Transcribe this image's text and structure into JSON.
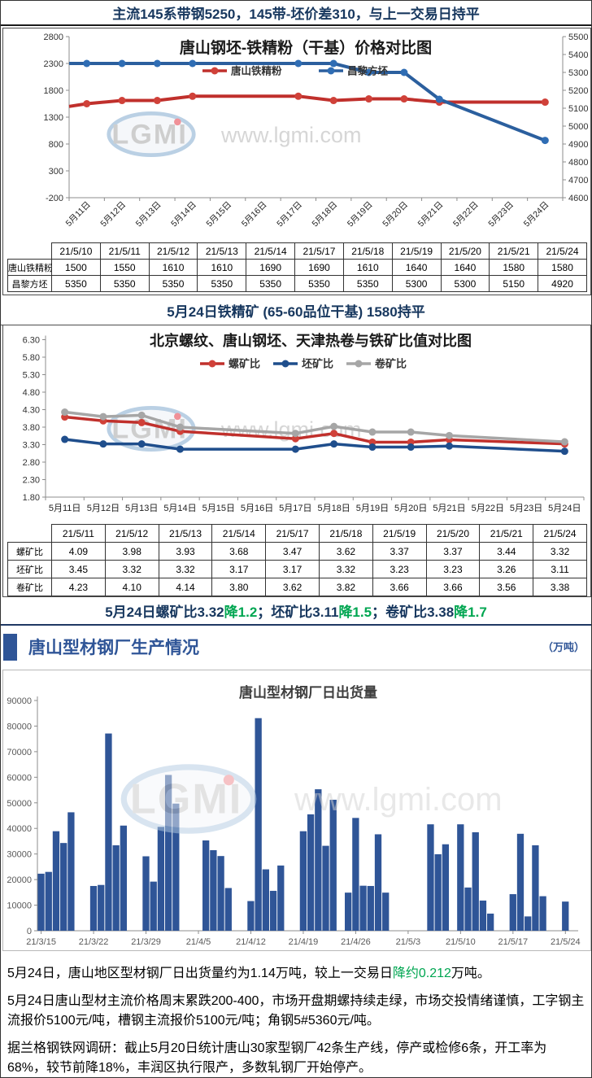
{
  "page_title": "主流145系带钢5250，145带-坯价差310，与上一交易日持平",
  "colors": {
    "navy": "#17375e",
    "green": "#00a651",
    "section_blue": "#2f5597",
    "series_red": "#c0302c",
    "series_blue": "#2b5f9e",
    "series_gray": "#a6a6a6",
    "bar_blue": "#2f5597",
    "axis_gray": "#8c8c8c",
    "label_gray": "#595959"
  },
  "watermark": {
    "letters": "LGMI",
    "url": "www.lgmi.com"
  },
  "chart_data": [
    {
      "type": "line",
      "title": "唐山钢坯-铁精粉（干基）价格对比图",
      "left_axis": {
        "min": -200,
        "max": 2800,
        "step": 500,
        "labels": [
          "2800",
          "2300",
          "1800",
          "1300",
          "800",
          "300",
          "-200"
        ]
      },
      "right_axis": {
        "min": 4600,
        "max": 5500,
        "step": 100,
        "labels": [
          "5500",
          "5400",
          "5300",
          "5200",
          "5100",
          "5000",
          "4900",
          "4800",
          "4700",
          "4600"
        ]
      },
      "x_labels": [
        "5月11日",
        "5月12日",
        "5月13日",
        "5月14日",
        "5月15日",
        "5月16日",
        "5月17日",
        "5月18日",
        "5月19日",
        "5月20日",
        "5月21日",
        "5月22日",
        "5月23日",
        "5月24日"
      ],
      "legend_position": "inside-top",
      "grid": false,
      "series": [
        {
          "name": "唐山铁精粉",
          "axis": "left",
          "color": "#c0302c",
          "marker_color": "#d04139",
          "edge_value": 1500,
          "data": [
            {
              "i": 0,
              "v": 1550
            },
            {
              "i": 1,
              "v": 1610
            },
            {
              "i": 2,
              "v": 1610
            },
            {
              "i": 3,
              "v": 1690
            },
            {
              "i": 6,
              "v": 1690
            },
            {
              "i": 7,
              "v": 1610
            },
            {
              "i": 8,
              "v": 1640
            },
            {
              "i": 9,
              "v": 1640
            },
            {
              "i": 10,
              "v": 1580
            },
            {
              "i": 13,
              "v": 1580
            }
          ]
        },
        {
          "name": "昌黎方坯",
          "axis": "right",
          "color": "#2b5f9e",
          "marker_color": "#2f6db4",
          "edge_value": 5350,
          "data": [
            {
              "i": 0,
              "v": 5350
            },
            {
              "i": 1,
              "v": 5350
            },
            {
              "i": 2,
              "v": 5350
            },
            {
              "i": 3,
              "v": 5350
            },
            {
              "i": 6,
              "v": 5350
            },
            {
              "i": 7,
              "v": 5350
            },
            {
              "i": 8,
              "v": 5300
            },
            {
              "i": 9,
              "v": 5300
            },
            {
              "i": 10,
              "v": 5150
            },
            {
              "i": 13,
              "v": 4920
            }
          ]
        }
      ]
    },
    {
      "type": "line",
      "title": "北京螺纹、唐山钢坯、天津热卷与铁矿比值对比图",
      "y_axis": {
        "min": 1.8,
        "max": 6.3,
        "step": 0.5,
        "labels": [
          "6.30",
          "5.80",
          "5.30",
          "4.80",
          "4.30",
          "3.80",
          "3.30",
          "2.80",
          "2.30",
          "1.80"
        ]
      },
      "x_labels": [
        "5月11日",
        "5月12日",
        "5月13日",
        "5月14日",
        "5月15日",
        "5月16日",
        "5月17日",
        "5月18日",
        "5月19日",
        "5月20日",
        "5月21日",
        "5月22日",
        "5月23日",
        "5月24日"
      ],
      "legend_position": "top",
      "grid": false,
      "series": [
        {
          "name": "螺矿比",
          "color": "#c0302c",
          "marker_color": "#d04139",
          "data": [
            {
              "i": 0,
              "v": 4.09
            },
            {
              "i": 1,
              "v": 3.98
            },
            {
              "i": 2,
              "v": 3.93
            },
            {
              "i": 3,
              "v": 3.68
            },
            {
              "i": 6,
              "v": 3.47
            },
            {
              "i": 7,
              "v": 3.62
            },
            {
              "i": 8,
              "v": 3.37
            },
            {
              "i": 9,
              "v": 3.37
            },
            {
              "i": 10,
              "v": 3.44
            },
            {
              "i": 13,
              "v": 3.32
            }
          ]
        },
        {
          "name": "坯矿比",
          "color": "#1f4e8c",
          "marker_color": "#1f4e8c",
          "data": [
            {
              "i": 0,
              "v": 3.45
            },
            {
              "i": 1,
              "v": 3.32
            },
            {
              "i": 2,
              "v": 3.32
            },
            {
              "i": 3,
              "v": 3.17
            },
            {
              "i": 6,
              "v": 3.17
            },
            {
              "i": 7,
              "v": 3.32
            },
            {
              "i": 8,
              "v": 3.23
            },
            {
              "i": 9,
              "v": 3.23
            },
            {
              "i": 10,
              "v": 3.26
            },
            {
              "i": 13,
              "v": 3.11
            }
          ]
        },
        {
          "name": "卷矿比",
          "color": "#a6a6a6",
          "marker_color": "#a6a6a6",
          "data": [
            {
              "i": 0,
              "v": 4.23
            },
            {
              "i": 1,
              "v": 4.1
            },
            {
              "i": 2,
              "v": 4.14
            },
            {
              "i": 3,
              "v": 3.8
            },
            {
              "i": 6,
              "v": 3.62
            },
            {
              "i": 7,
              "v": 3.82
            },
            {
              "i": 8,
              "v": 3.66
            },
            {
              "i": 9,
              "v": 3.66
            },
            {
              "i": 10,
              "v": 3.56
            },
            {
              "i": 13,
              "v": 3.38
            }
          ]
        }
      ]
    },
    {
      "type": "bar",
      "title": "唐山型材钢厂日出货量",
      "ylabel": "",
      "y_axis": {
        "min": 0,
        "max": 90000,
        "step": 10000,
        "labels": [
          "90000",
          "80000",
          "70000",
          "60000",
          "50000",
          "40000",
          "30000",
          "20000",
          "10000",
          "0"
        ]
      },
      "tick_labels": [
        "21/3/15",
        "21/3/22",
        "21/3/29",
        "21/4/5",
        "21/4/12",
        "21/4/19",
        "21/4/26",
        "21/5/3",
        "21/5/10",
        "21/5/17",
        "21/5/24"
      ],
      "tick_days": [
        0,
        7,
        14,
        21,
        28,
        35,
        42,
        49,
        56,
        63,
        70
      ],
      "bar_color": "#2f5597",
      "bars": [
        {
          "d": "21/3/15",
          "i": 0,
          "v": 22300
        },
        {
          "d": "21/3/16",
          "i": 1,
          "v": 23000
        },
        {
          "d": "21/3/17",
          "i": 2,
          "v": 38900
        },
        {
          "d": "21/3/18",
          "i": 3,
          "v": 34300
        },
        {
          "d": "21/3/19",
          "i": 4,
          "v": 46300
        },
        {
          "d": "21/3/22",
          "i": 7,
          "v": 17500
        },
        {
          "d": "21/3/23",
          "i": 8,
          "v": 17900
        },
        {
          "d": "21/3/24",
          "i": 9,
          "v": 77100
        },
        {
          "d": "21/3/25",
          "i": 10,
          "v": 33400
        },
        {
          "d": "21/3/26",
          "i": 11,
          "v": 41100
        },
        {
          "d": "21/3/29",
          "i": 14,
          "v": 29100
        },
        {
          "d": "21/3/30",
          "i": 15,
          "v": 19200
        },
        {
          "d": "21/3/31",
          "i": 16,
          "v": 40600
        },
        {
          "d": "21/4/1",
          "i": 17,
          "v": 60900
        },
        {
          "d": "21/4/2",
          "i": 18,
          "v": 49700
        },
        {
          "d": "21/4/6",
          "i": 22,
          "v": 35300
        },
        {
          "d": "21/4/7",
          "i": 23,
          "v": 31500
        },
        {
          "d": "21/4/8",
          "i": 24,
          "v": 29200
        },
        {
          "d": "21/4/9",
          "i": 25,
          "v": 16700
        },
        {
          "d": "21/4/12",
          "i": 28,
          "v": 11600
        },
        {
          "d": "21/4/13",
          "i": 29,
          "v": 83100
        },
        {
          "d": "21/4/14",
          "i": 30,
          "v": 24000
        },
        {
          "d": "21/4/15",
          "i": 31,
          "v": 15600
        },
        {
          "d": "21/4/16",
          "i": 32,
          "v": 25500
        },
        {
          "d": "21/4/19",
          "i": 35,
          "v": 38900
        },
        {
          "d": "21/4/20",
          "i": 36,
          "v": 45500
        },
        {
          "d": "21/4/21",
          "i": 37,
          "v": 55300
        },
        {
          "d": "21/4/22",
          "i": 38,
          "v": 33200
        },
        {
          "d": "21/4/23",
          "i": 39,
          "v": 51200
        },
        {
          "d": "21/4/25",
          "i": 41,
          "v": 14900
        },
        {
          "d": "21/4/26",
          "i": 42,
          "v": 44100
        },
        {
          "d": "21/4/27",
          "i": 43,
          "v": 17600
        },
        {
          "d": "21/4/28",
          "i": 44,
          "v": 17500
        },
        {
          "d": "21/4/29",
          "i": 45,
          "v": 37700
        },
        {
          "d": "21/4/30",
          "i": 46,
          "v": 14900
        },
        {
          "d": "21/5/6",
          "i": 52,
          "v": 41600
        },
        {
          "d": "21/5/7",
          "i": 53,
          "v": 29900
        },
        {
          "d": "21/5/8",
          "i": 54,
          "v": 33800
        },
        {
          "d": "21/5/10",
          "i": 56,
          "v": 41600
        },
        {
          "d": "21/5/11",
          "i": 57,
          "v": 16900
        },
        {
          "d": "21/5/12",
          "i": 58,
          "v": 38500
        },
        {
          "d": "21/5/13",
          "i": 59,
          "v": 11800
        },
        {
          "d": "21/5/14",
          "i": 60,
          "v": 6700
        },
        {
          "d": "21/5/17",
          "i": 63,
          "v": 14300
        },
        {
          "d": "21/5/18",
          "i": 64,
          "v": 37900
        },
        {
          "d": "21/5/19",
          "i": 65,
          "v": 5600
        },
        {
          "d": "21/5/20",
          "i": 66,
          "v": 33400
        },
        {
          "d": "21/5/21",
          "i": 67,
          "v": 13500
        },
        {
          "d": "21/5/24",
          "i": 70,
          "v": 11400
        }
      ]
    }
  ],
  "table1": {
    "col_headers": [
      "21/5/10",
      "21/5/11",
      "21/5/12",
      "21/5/13",
      "21/5/14",
      "21/5/17",
      "21/5/18",
      "21/5/19",
      "21/5/20",
      "21/5/21",
      "21/5/24"
    ],
    "rows": [
      {
        "label": "唐山铁精粉",
        "values": [
          "1500",
          "1550",
          "1610",
          "1610",
          "1690",
          "1690",
          "1610",
          "1640",
          "1640",
          "1580",
          "1580"
        ]
      },
      {
        "label": "昌黎方坯",
        "values": [
          "5350",
          "5350",
          "5350",
          "5350",
          "5350",
          "5350",
          "5350",
          "5300",
          "5300",
          "5150",
          "4920"
        ]
      }
    ]
  },
  "info1": "5月24日铁精矿 (65-60品位干基) 1580持平",
  "table2": {
    "col_headers": [
      "21/5/11",
      "21/5/12",
      "21/5/13",
      "21/5/14",
      "21/5/17",
      "21/5/18",
      "21/5/19",
      "21/5/20",
      "21/5/21",
      "21/5/24"
    ],
    "rows": [
      {
        "label": "螺矿比",
        "values": [
          "4.09",
          "3.98",
          "3.93",
          "3.68",
          "3.47",
          "3.62",
          "3.37",
          "3.37",
          "3.44",
          "3.32"
        ]
      },
      {
        "label": "坯矿比",
        "values": [
          "3.45",
          "3.32",
          "3.32",
          "3.17",
          "3.17",
          "3.32",
          "3.23",
          "3.23",
          "3.26",
          "3.11"
        ]
      },
      {
        "label": "卷矿比",
        "values": [
          "4.23",
          "4.10",
          "4.14",
          "3.80",
          "3.62",
          "3.82",
          "3.66",
          "3.66",
          "3.56",
          "3.38"
        ]
      }
    ]
  },
  "info2": {
    "segments": [
      {
        "t": "5月24日螺矿比3.32 ",
        "c": "#17375e"
      },
      {
        "t": "降1.2",
        "c": "#00a651"
      },
      {
        "t": "；坯矿比3.11 ",
        "c": "#17375e"
      },
      {
        "t": "降1.5",
        "c": "#00a651"
      },
      {
        "t": "；卷矿比3.38 ",
        "c": "#17375e"
      },
      {
        "t": "降1.7",
        "c": "#00a651"
      }
    ]
  },
  "section_header": {
    "title": "唐山型材钢厂生产情况",
    "unit": "（万吨）"
  },
  "paragraphs": [
    {
      "segments": [
        {
          "t": "5月24日，唐山地区型材钢厂日出货量约为1.14万吨，较上一交易日",
          "c": "#000000"
        },
        {
          "t": "降约0.212",
          "c": "#00a651"
        },
        {
          "t": "万吨。",
          "c": "#000000"
        }
      ]
    },
    {
      "segments": [
        {
          "t": "5月24日唐山型材主流价格周末累跌200-400，市场开盘期螺持续走绿，市场交投情绪谨慎，工字钢主流报价5100元/吨，槽钢主流报价5100元/吨；角钢5#5360元/吨。",
          "c": "#000000"
        }
      ]
    },
    {
      "segments": [
        {
          "t": "据兰格钢铁网调研：截止5月20日统计唐山30家型钢厂42条生产线，停产或检修6条，开工率为68%，较节前降18%，丰润区执行限产，多数轧钢厂开始停产。",
          "c": "#000000"
        }
      ]
    }
  ]
}
